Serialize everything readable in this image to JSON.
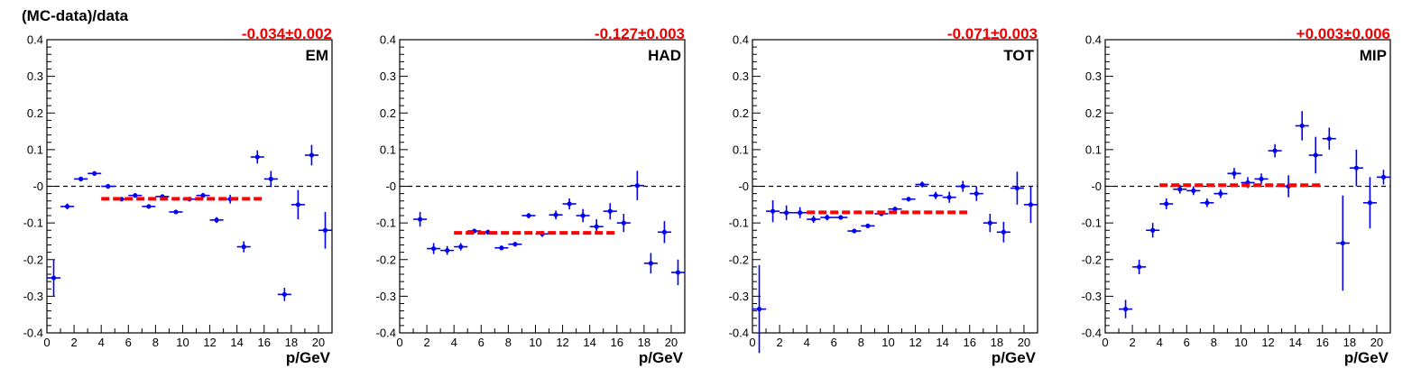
{
  "colors": {
    "points": "#0000ee",
    "fit": "#ff0000",
    "fit_text": "#ee0000",
    "zero_line": "#000000"
  },
  "ylabel": "(MC-data)/data",
  "chart_data": [
    {
      "type": "scatter",
      "panel_label": "EM",
      "fit_text": "-0.034±0.002",
      "xlabel": "p/GeV",
      "xlim": [
        0,
        21
      ],
      "ylim": [
        -0.4,
        0.4
      ],
      "x_ticks": [
        "0",
        "2",
        "4",
        "6",
        "8",
        "10",
        "12",
        "14",
        "16",
        "18",
        "20"
      ],
      "y_ticks": [
        "0.4",
        "0.3",
        "0.2",
        "0.1",
        "-0",
        "-0.1",
        "-0.2",
        "-0.3",
        "-0.4"
      ],
      "fit": {
        "value": -0.034,
        "x_range": [
          4,
          16
        ]
      },
      "reference_line": 0,
      "points": [
        {
          "x": 0.5,
          "y": -0.25,
          "yerr": 0.05
        },
        {
          "x": 1.5,
          "y": -0.055,
          "yerr": 0.008
        },
        {
          "x": 2.5,
          "y": 0.02,
          "yerr": 0.006
        },
        {
          "x": 3.5,
          "y": 0.035,
          "yerr": 0.006
        },
        {
          "x": 4.5,
          "y": 0.0,
          "yerr": 0.004
        },
        {
          "x": 5.5,
          "y": -0.035,
          "yerr": 0.004
        },
        {
          "x": 6.5,
          "y": -0.025,
          "yerr": 0.004
        },
        {
          "x": 7.5,
          "y": -0.055,
          "yerr": 0.005
        },
        {
          "x": 8.5,
          "y": -0.028,
          "yerr": 0.005
        },
        {
          "x": 9.5,
          "y": -0.07,
          "yerr": 0.005
        },
        {
          "x": 10.5,
          "y": -0.035,
          "yerr": 0.006
        },
        {
          "x": 11.5,
          "y": -0.025,
          "yerr": 0.007
        },
        {
          "x": 12.5,
          "y": -0.092,
          "yerr": 0.008
        },
        {
          "x": 13.5,
          "y": -0.035,
          "yerr": 0.012
        },
        {
          "x": 14.5,
          "y": -0.165,
          "yerr": 0.015
        },
        {
          "x": 15.5,
          "y": 0.08,
          "yerr": 0.018
        },
        {
          "x": 16.5,
          "y": 0.02,
          "yerr": 0.022
        },
        {
          "x": 17.5,
          "y": -0.295,
          "yerr": 0.018
        },
        {
          "x": 18.5,
          "y": -0.05,
          "yerr": 0.04
        },
        {
          "x": 19.5,
          "y": 0.085,
          "yerr": 0.028
        },
        {
          "x": 20.5,
          "y": -0.12,
          "yerr": 0.05
        }
      ]
    },
    {
      "type": "scatter",
      "panel_label": "HAD",
      "fit_text": "-0.127±0.003",
      "xlabel": "p/GeV",
      "xlim": [
        0,
        21
      ],
      "ylim": [
        -0.4,
        0.4
      ],
      "x_ticks": [
        "0",
        "2",
        "4",
        "6",
        "8",
        "10",
        "12",
        "14",
        "16",
        "18",
        "20"
      ],
      "y_ticks": [
        "0.4",
        "0.3",
        "0.2",
        "0.1",
        "-0",
        "-0.1",
        "-0.2",
        "-0.3",
        "-0.4"
      ],
      "fit": {
        "value": -0.127,
        "x_range": [
          4,
          16
        ]
      },
      "reference_line": 0,
      "points": [
        {
          "x": 1.5,
          "y": -0.09,
          "yerr": 0.02
        },
        {
          "x": 2.5,
          "y": -0.17,
          "yerr": 0.015
        },
        {
          "x": 3.5,
          "y": -0.175,
          "yerr": 0.012
        },
        {
          "x": 4.5,
          "y": -0.165,
          "yerr": 0.01
        },
        {
          "x": 5.5,
          "y": -0.122,
          "yerr": 0.006
        },
        {
          "x": 6.5,
          "y": -0.125,
          "yerr": 0.006
        },
        {
          "x": 7.5,
          "y": -0.168,
          "yerr": 0.006
        },
        {
          "x": 8.5,
          "y": -0.158,
          "yerr": 0.006
        },
        {
          "x": 9.5,
          "y": -0.08,
          "yerr": 0.007
        },
        {
          "x": 10.5,
          "y": -0.13,
          "yerr": 0.008
        },
        {
          "x": 11.5,
          "y": -0.078,
          "yerr": 0.012
        },
        {
          "x": 12.5,
          "y": -0.048,
          "yerr": 0.015
        },
        {
          "x": 13.5,
          "y": -0.08,
          "yerr": 0.018
        },
        {
          "x": 14.5,
          "y": -0.11,
          "yerr": 0.02
        },
        {
          "x": 15.5,
          "y": -0.068,
          "yerr": 0.022
        },
        {
          "x": 16.5,
          "y": -0.1,
          "yerr": 0.025
        },
        {
          "x": 17.5,
          "y": 0.002,
          "yerr": 0.04
        },
        {
          "x": 18.5,
          "y": -0.21,
          "yerr": 0.028
        },
        {
          "x": 19.5,
          "y": -0.125,
          "yerr": 0.03
        },
        {
          "x": 20.5,
          "y": -0.235,
          "yerr": 0.035
        }
      ]
    },
    {
      "type": "scatter",
      "panel_label": "TOT",
      "fit_text": "-0.071±0.003",
      "xlabel": "p/GeV",
      "xlim": [
        0,
        21
      ],
      "ylim": [
        -0.4,
        0.4
      ],
      "x_ticks": [
        "0",
        "2",
        "4",
        "6",
        "8",
        "10",
        "12",
        "14",
        "16",
        "18",
        "20"
      ],
      "y_ticks": [
        "0.4",
        "0.3",
        "0.2",
        "0.1",
        "-0",
        "-0.1",
        "-0.2",
        "-0.3",
        "-0.4"
      ],
      "fit": {
        "value": -0.071,
        "x_range": [
          4,
          16
        ]
      },
      "reference_line": 0,
      "points": [
        {
          "x": 0.5,
          "y": -0.335,
          "yerr": 0.12
        },
        {
          "x": 1.5,
          "y": -0.068,
          "yerr": 0.03
        },
        {
          "x": 2.5,
          "y": -0.072,
          "yerr": 0.02
        },
        {
          "x": 3.5,
          "y": -0.072,
          "yerr": 0.015
        },
        {
          "x": 4.5,
          "y": -0.09,
          "yerr": 0.01
        },
        {
          "x": 5.5,
          "y": -0.085,
          "yerr": 0.008
        },
        {
          "x": 6.5,
          "y": -0.085,
          "yerr": 0.006
        },
        {
          "x": 7.5,
          "y": -0.122,
          "yerr": 0.006
        },
        {
          "x": 8.5,
          "y": -0.108,
          "yerr": 0.006
        },
        {
          "x": 9.5,
          "y": -0.075,
          "yerr": 0.006
        },
        {
          "x": 10.5,
          "y": -0.062,
          "yerr": 0.006
        },
        {
          "x": 11.5,
          "y": -0.035,
          "yerr": 0.006
        },
        {
          "x": 12.5,
          "y": 0.005,
          "yerr": 0.008
        },
        {
          "x": 13.5,
          "y": -0.025,
          "yerr": 0.01
        },
        {
          "x": 14.5,
          "y": -0.03,
          "yerr": 0.015
        },
        {
          "x": 15.5,
          "y": 0.0,
          "yerr": 0.015
        },
        {
          "x": 16.5,
          "y": -0.02,
          "yerr": 0.02
        },
        {
          "x": 17.5,
          "y": -0.1,
          "yerr": 0.025
        },
        {
          "x": 18.5,
          "y": -0.125,
          "yerr": 0.028
        },
        {
          "x": 19.5,
          "y": -0.005,
          "yerr": 0.045
        },
        {
          "x": 20.5,
          "y": -0.05,
          "yerr": 0.05
        }
      ]
    },
    {
      "type": "scatter",
      "panel_label": "MIP",
      "fit_text": "+0.003±0.006",
      "xlabel": "p/GeV",
      "xlim": [
        0,
        21
      ],
      "ylim": [
        -0.4,
        0.4
      ],
      "x_ticks": [
        "0",
        "2",
        "4",
        "6",
        "8",
        "10",
        "12",
        "14",
        "16",
        "18",
        "20"
      ],
      "y_ticks": [
        "0.4",
        "0.3",
        "0.2",
        "0.1",
        "-0",
        "-0.1",
        "-0.2",
        "-0.3",
        "-0.4"
      ],
      "fit": {
        "value": 0.003,
        "x_range": [
          4,
          16
        ]
      },
      "reference_line": 0,
      "points": [
        {
          "x": 1.5,
          "y": -0.335,
          "yerr": 0.025
        },
        {
          "x": 2.5,
          "y": -0.22,
          "yerr": 0.02
        },
        {
          "x": 3.5,
          "y": -0.12,
          "yerr": 0.02
        },
        {
          "x": 4.5,
          "y": -0.048,
          "yerr": 0.015
        },
        {
          "x": 5.5,
          "y": -0.008,
          "yerr": 0.012
        },
        {
          "x": 6.5,
          "y": -0.012,
          "yerr": 0.012
        },
        {
          "x": 7.5,
          "y": -0.045,
          "yerr": 0.012
        },
        {
          "x": 8.5,
          "y": -0.02,
          "yerr": 0.012
        },
        {
          "x": 9.5,
          "y": 0.035,
          "yerr": 0.015
        },
        {
          "x": 10.5,
          "y": 0.01,
          "yerr": 0.015
        },
        {
          "x": 11.5,
          "y": 0.02,
          "yerr": 0.015
        },
        {
          "x": 12.5,
          "y": 0.097,
          "yerr": 0.018
        },
        {
          "x": 13.5,
          "y": 0.0,
          "yerr": 0.03
        },
        {
          "x": 14.5,
          "y": 0.165,
          "yerr": 0.04
        },
        {
          "x": 15.5,
          "y": 0.085,
          "yerr": 0.05
        },
        {
          "x": 16.5,
          "y": 0.13,
          "yerr": 0.03
        },
        {
          "x": 17.5,
          "y": -0.155,
          "yerr": 0.13
        },
        {
          "x": 18.5,
          "y": 0.05,
          "yerr": 0.05
        },
        {
          "x": 19.5,
          "y": -0.045,
          "yerr": 0.07
        },
        {
          "x": 20.5,
          "y": 0.025,
          "yerr": 0.02
        }
      ]
    }
  ]
}
